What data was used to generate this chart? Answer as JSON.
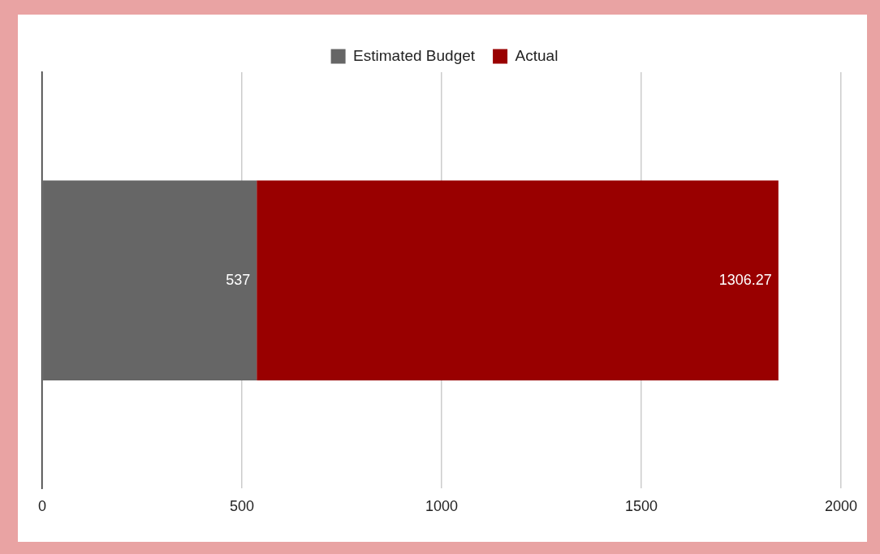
{
  "chart_data": {
    "type": "bar",
    "orientation": "horizontal",
    "stacked": true,
    "categories": [
      null
    ],
    "series": [
      {
        "name": "Estimated Budget",
        "color": "#666666",
        "values": [
          537
        ]
      },
      {
        "name": "Actual",
        "color": "#990000",
        "values": [
          1306.27
        ]
      }
    ],
    "xlim": [
      0,
      2000
    ],
    "xticks": [
      0,
      500,
      1000,
      1500,
      2000
    ],
    "grid": "x",
    "legend": "top",
    "data_labels": true
  }
}
